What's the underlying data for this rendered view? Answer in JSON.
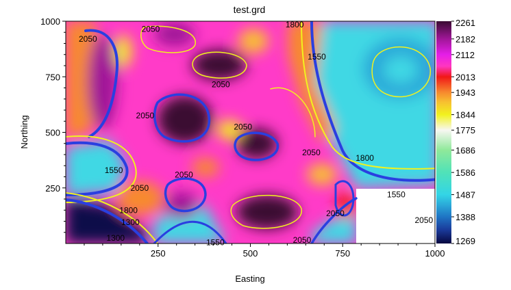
{
  "chart_data": {
    "type": "contour",
    "title": "test.grd",
    "xlabel": "Easting",
    "ylabel": "Northing",
    "xlim": [
      0,
      1000
    ],
    "ylim": [
      0,
      1000
    ],
    "x_ticks": [
      "250",
      "500",
      "750",
      "1000"
    ],
    "y_ticks": [
      "250",
      "500",
      "750",
      "1000"
    ],
    "x_tick_values": [
      250,
      500,
      750,
      1000
    ],
    "y_tick_values": [
      250,
      500,
      750,
      1000
    ],
    "colorbar": {
      "min": 1269,
      "max": 2261,
      "ticks": [
        "1269",
        "1388",
        "1487",
        "1586",
        "1686",
        "1775",
        "1844",
        "1943",
        "2013",
        "2112",
        "2182",
        "2261"
      ],
      "tick_values": [
        1269,
        1388,
        1487,
        1586,
        1686,
        1775,
        1844,
        1943,
        2013,
        2112,
        2182,
        2261
      ],
      "stops": [
        {
          "v": 1269,
          "color": "#070740"
        },
        {
          "v": 1330,
          "color": "#1a3a9a"
        },
        {
          "v": 1388,
          "color": "#1f74c4"
        },
        {
          "v": 1440,
          "color": "#2aa8d8"
        },
        {
          "v": 1487,
          "color": "#33d5e6"
        },
        {
          "v": 1586,
          "color": "#50e2b8"
        },
        {
          "v": 1686,
          "color": "#8fe99a"
        },
        {
          "v": 1775,
          "color": "#f7f7f2"
        },
        {
          "v": 1844,
          "color": "#f2f21e"
        },
        {
          "v": 1900,
          "color": "#f7c030"
        },
        {
          "v": 1943,
          "color": "#f78a2e"
        },
        {
          "v": 2013,
          "color": "#f01818"
        },
        {
          "v": 2060,
          "color": "#ff36c0"
        },
        {
          "v": 2112,
          "color": "#e51ee8"
        },
        {
          "v": 2182,
          "color": "#a01698"
        },
        {
          "v": 2261,
          "color": "#3a0c32"
        }
      ]
    },
    "contour_labels": [
      {
        "text": "2050",
        "x": 60,
        "y": 920
      },
      {
        "text": "2050",
        "x": 230,
        "y": 965
      },
      {
        "text": "1800",
        "x": 620,
        "y": 985
      },
      {
        "text": "1550",
        "x": 680,
        "y": 840
      },
      {
        "text": "2050",
        "x": 420,
        "y": 715
      },
      {
        "text": "2050",
        "x": 215,
        "y": 575
      },
      {
        "text": "2050",
        "x": 480,
        "y": 525
      },
      {
        "text": "2050",
        "x": 665,
        "y": 410
      },
      {
        "text": "1800",
        "x": 810,
        "y": 385
      },
      {
        "text": "1550",
        "x": 130,
        "y": 330
      },
      {
        "text": "2050",
        "x": 320,
        "y": 310
      },
      {
        "text": "1550",
        "x": 895,
        "y": 220
      },
      {
        "text": "2050",
        "x": 200,
        "y": 250
      },
      {
        "text": "2050",
        "x": 730,
        "y": 135
      },
      {
        "text": "1800",
        "x": 170,
        "y": 150
      },
      {
        "text": "1300",
        "x": 175,
        "y": 95
      },
      {
        "text": "1300",
        "x": 135,
        "y": 25
      },
      {
        "text": "1550",
        "x": 405,
        "y": 5
      },
      {
        "text": "2050",
        "x": 640,
        "y": 15
      },
      {
        "text": "2050",
        "x": 970,
        "y": 105
      }
    ]
  }
}
